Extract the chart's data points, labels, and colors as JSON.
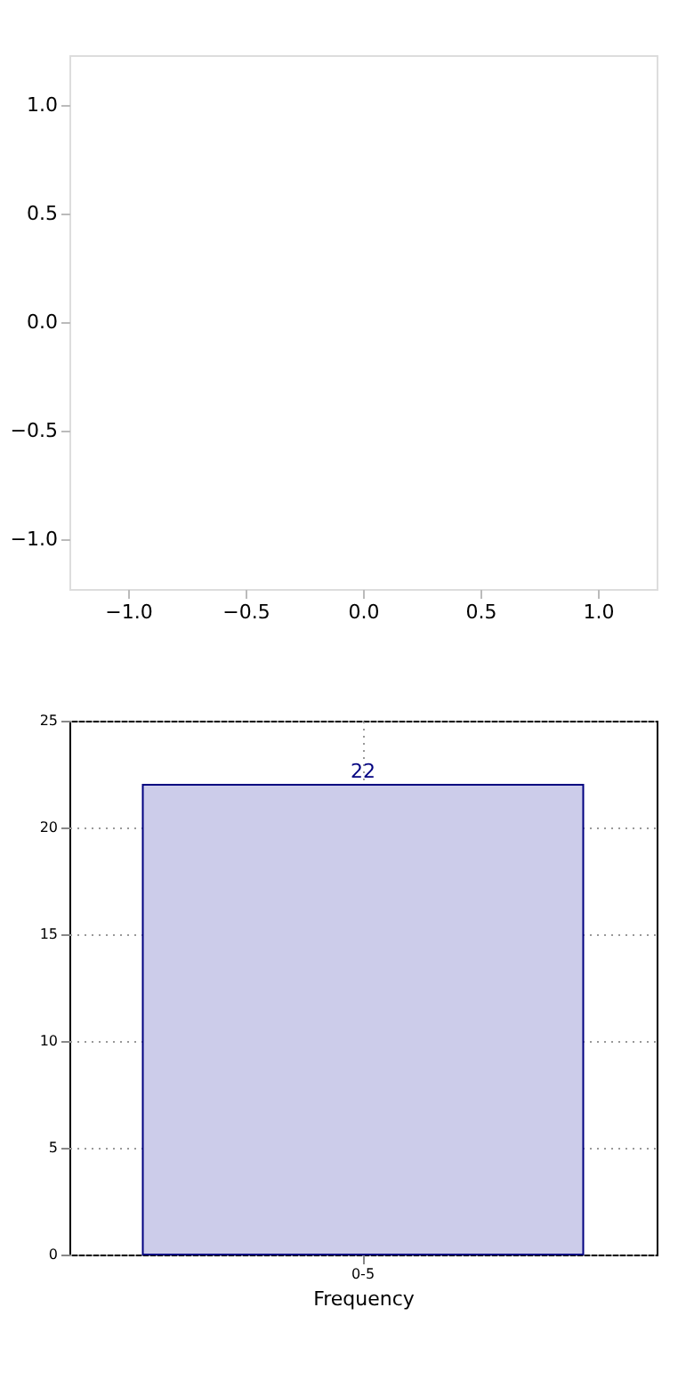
{
  "chart_data": [
    {
      "type": "scatter",
      "xlim": [
        -1.25,
        1.25
      ],
      "ylim": [
        -1.23,
        1.23
      ],
      "xticks": [
        {
          "value": -1,
          "label": "−1.0"
        },
        {
          "value": -0.5,
          "label": "−0.5"
        },
        {
          "value": 0,
          "label": "0.0"
        },
        {
          "value": 0.5,
          "label": "0.5"
        },
        {
          "value": 1,
          "label": "1.0"
        }
      ],
      "yticks": [
        {
          "value": -1,
          "label": "−1.0"
        },
        {
          "value": -0.5,
          "label": "−0.5"
        },
        {
          "value": 0,
          "label": "0.0"
        },
        {
          "value": 0.5,
          "label": "0.5"
        },
        {
          "value": 1,
          "label": "1.0"
        }
      ]
    },
    {
      "type": "bar",
      "categories": [
        "0-5"
      ],
      "values": [
        22
      ],
      "color": "#ccccea",
      "ylim": [
        0,
        25
      ],
      "yticks": [
        0,
        5,
        10,
        15,
        20,
        25
      ],
      "grid": true,
      "xlabel": "Frequency",
      "data_labels": true
    }
  ]
}
